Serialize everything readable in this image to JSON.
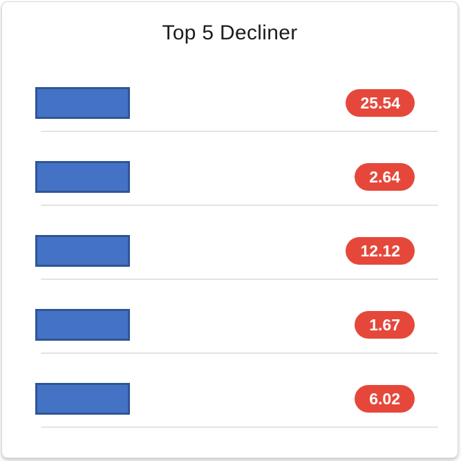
{
  "card": {
    "title": "Top 5 Decliner"
  },
  "rows": [
    {
      "value": "25.54"
    },
    {
      "value": "2.64"
    },
    {
      "value": "12.12"
    },
    {
      "value": "1.67"
    },
    {
      "value": "6.02"
    }
  ],
  "colors": {
    "bar_fill": "#4472C4",
    "bar_border": "#2F5597",
    "badge_bg": "#E5483B",
    "badge_text": "#FFFFFF",
    "divider": "#E3E3E3",
    "title_text": "#1C1C1C",
    "card_border": "#D9D9D9"
  },
  "chart_data": {
    "type": "bar",
    "title": "Top 5 Decliner",
    "orientation": "horizontal",
    "categories": [
      "",
      "",
      "",
      "",
      ""
    ],
    "values": [
      25.54,
      2.64,
      12.12,
      1.67,
      6.02
    ],
    "xlabel": "",
    "ylabel": "",
    "legend": "none",
    "grid": "off",
    "layout_hints": {
      "bar_length": "uniform (bars not scaled to values)",
      "value_labels": "red rounded pill badges, right-aligned per row",
      "row_dividers": "light gray horizontal line under each row"
    }
  }
}
